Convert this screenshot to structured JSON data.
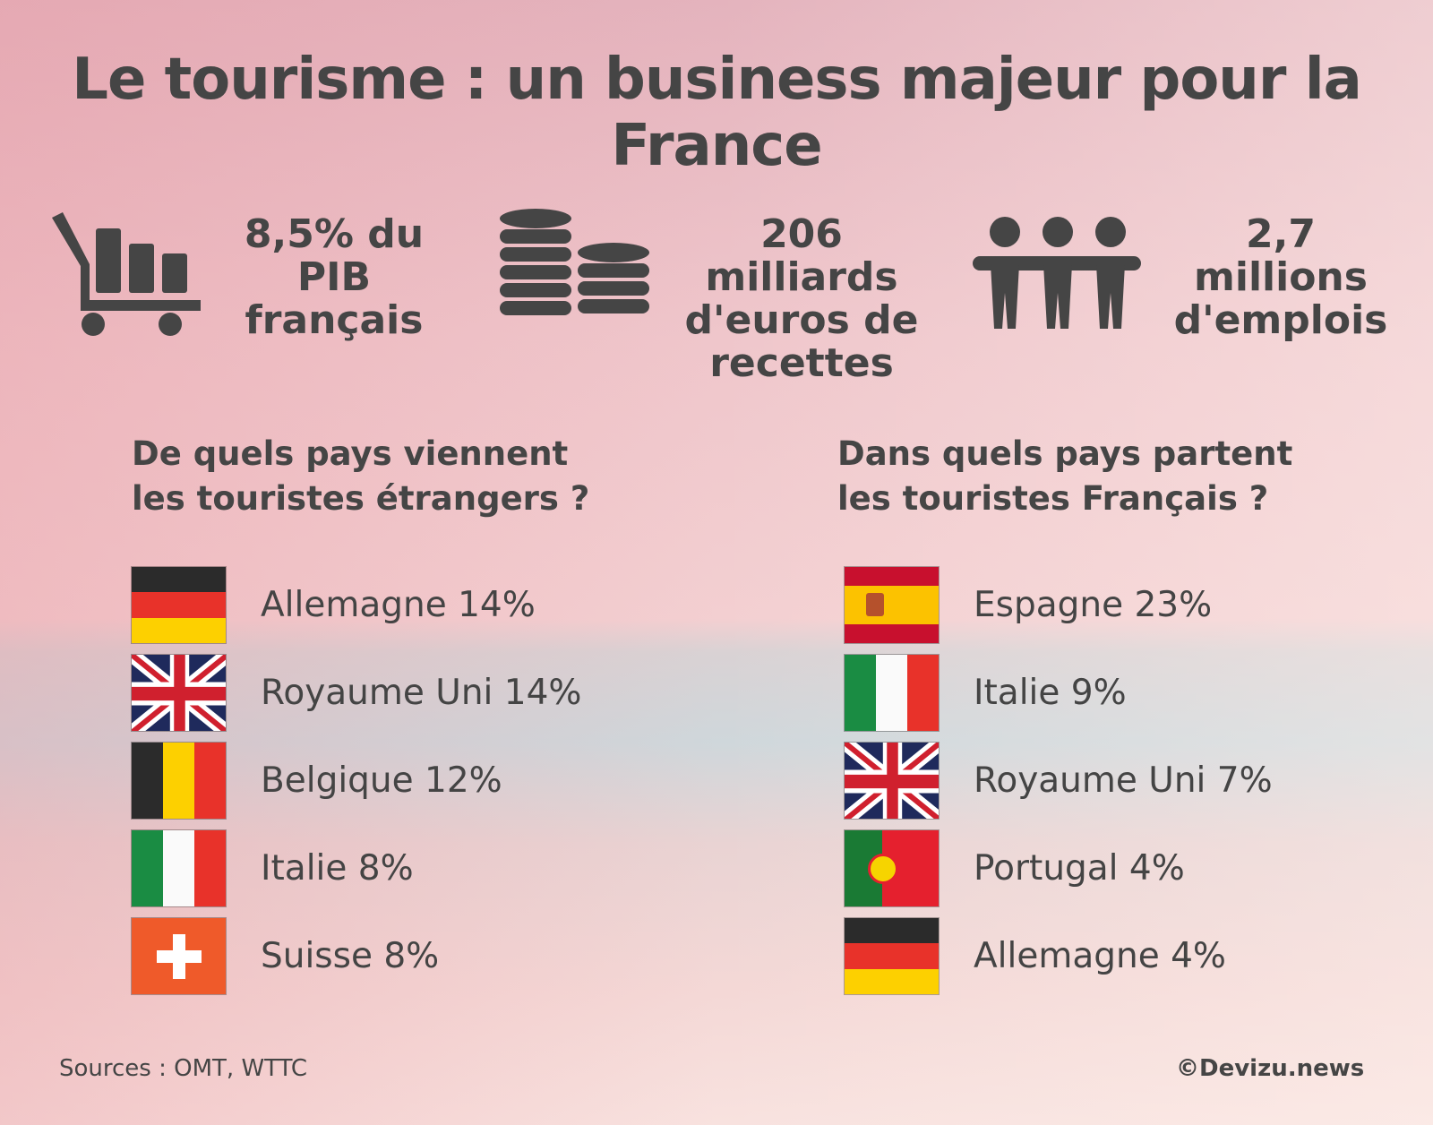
{
  "title": "Le tourisme : un business majeur pour la France",
  "stats": [
    {
      "icon": "shopping-cart-bar-chart-icon",
      "lines": [
        "8,5% du PIB",
        "français"
      ]
    },
    {
      "icon": "coin-stacks-icon",
      "lines": [
        "206 milliards",
        "d'euros de",
        "recettes"
      ]
    },
    {
      "icon": "people-group-icon",
      "lines": [
        "2,7 millions",
        "d'emplois"
      ]
    }
  ],
  "left": {
    "heading": [
      "De quels pays viennent",
      "les touristes étrangers ?"
    ],
    "items": [
      {
        "flag": "germany",
        "label": "Allemagne 14%"
      },
      {
        "flag": "uk",
        "label": "Royaume Uni 14%"
      },
      {
        "flag": "belgium",
        "label": "Belgique 12%"
      },
      {
        "flag": "italy",
        "label": "Italie 8%"
      },
      {
        "flag": "switzerland",
        "label": "Suisse 8%"
      }
    ]
  },
  "right": {
    "heading": [
      "Dans quels pays partent",
      "les touristes Français ?"
    ],
    "items": [
      {
        "flag": "spain",
        "label": "Espagne 23%"
      },
      {
        "flag": "italy",
        "label": "Italie 9%"
      },
      {
        "flag": "uk",
        "label": "Royaume Uni 7%"
      },
      {
        "flag": "portugal",
        "label": "Portugal 4%"
      },
      {
        "flag": "germany",
        "label": "Allemagne 4%"
      }
    ]
  },
  "footer": {
    "sources": "Sources : OMT, WTTC",
    "credit": "©Devizu.news"
  },
  "colors": {
    "text": "#454545"
  }
}
